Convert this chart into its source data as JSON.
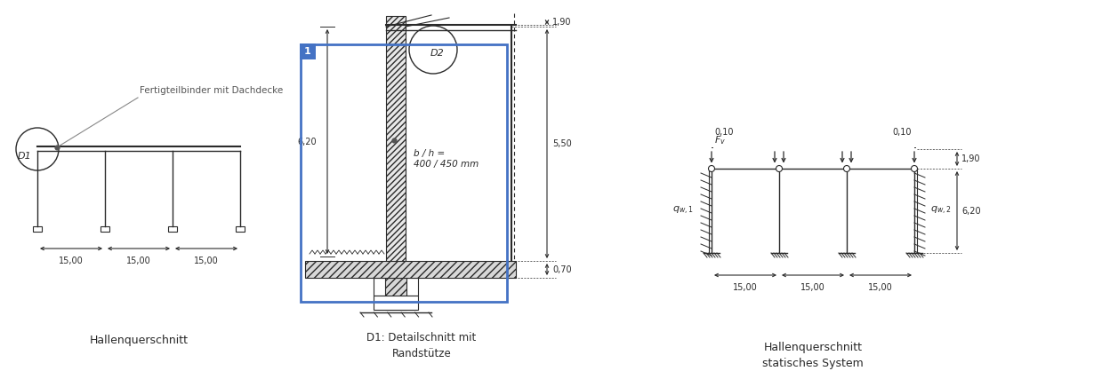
{
  "bg_color": "#ffffff",
  "line_color": "#2a2a2a",
  "blue_box_color": "#4472c4",
  "blue_badge_color": "#4472c4",
  "panel1_label": "Hallenquerschnitt",
  "panel2_label": "D1: Detailschnitt mit\nRandstütze",
  "panel3_label": "Hallenquerschnitt\nstatisches System",
  "annotation_text": "Fertigteilbinder mit Dachdecke",
  "d1_label": "D1",
  "d2_label": "D2",
  "dim_15_00": "15,00",
  "dim_6_20": "6,20",
  "dim_1_90": "1,90",
  "dim_5_50": "5,50",
  "dim_0_70": "0,70",
  "dim_0_10": "0,10",
  "bh_text": "b / h =\n400 / 450 mm",
  "badge1_label": "1",
  "fv_label": "$F_v$",
  "qw1_label": "$q_{w,1}$",
  "qw2_label": "$q_{w,2}$"
}
